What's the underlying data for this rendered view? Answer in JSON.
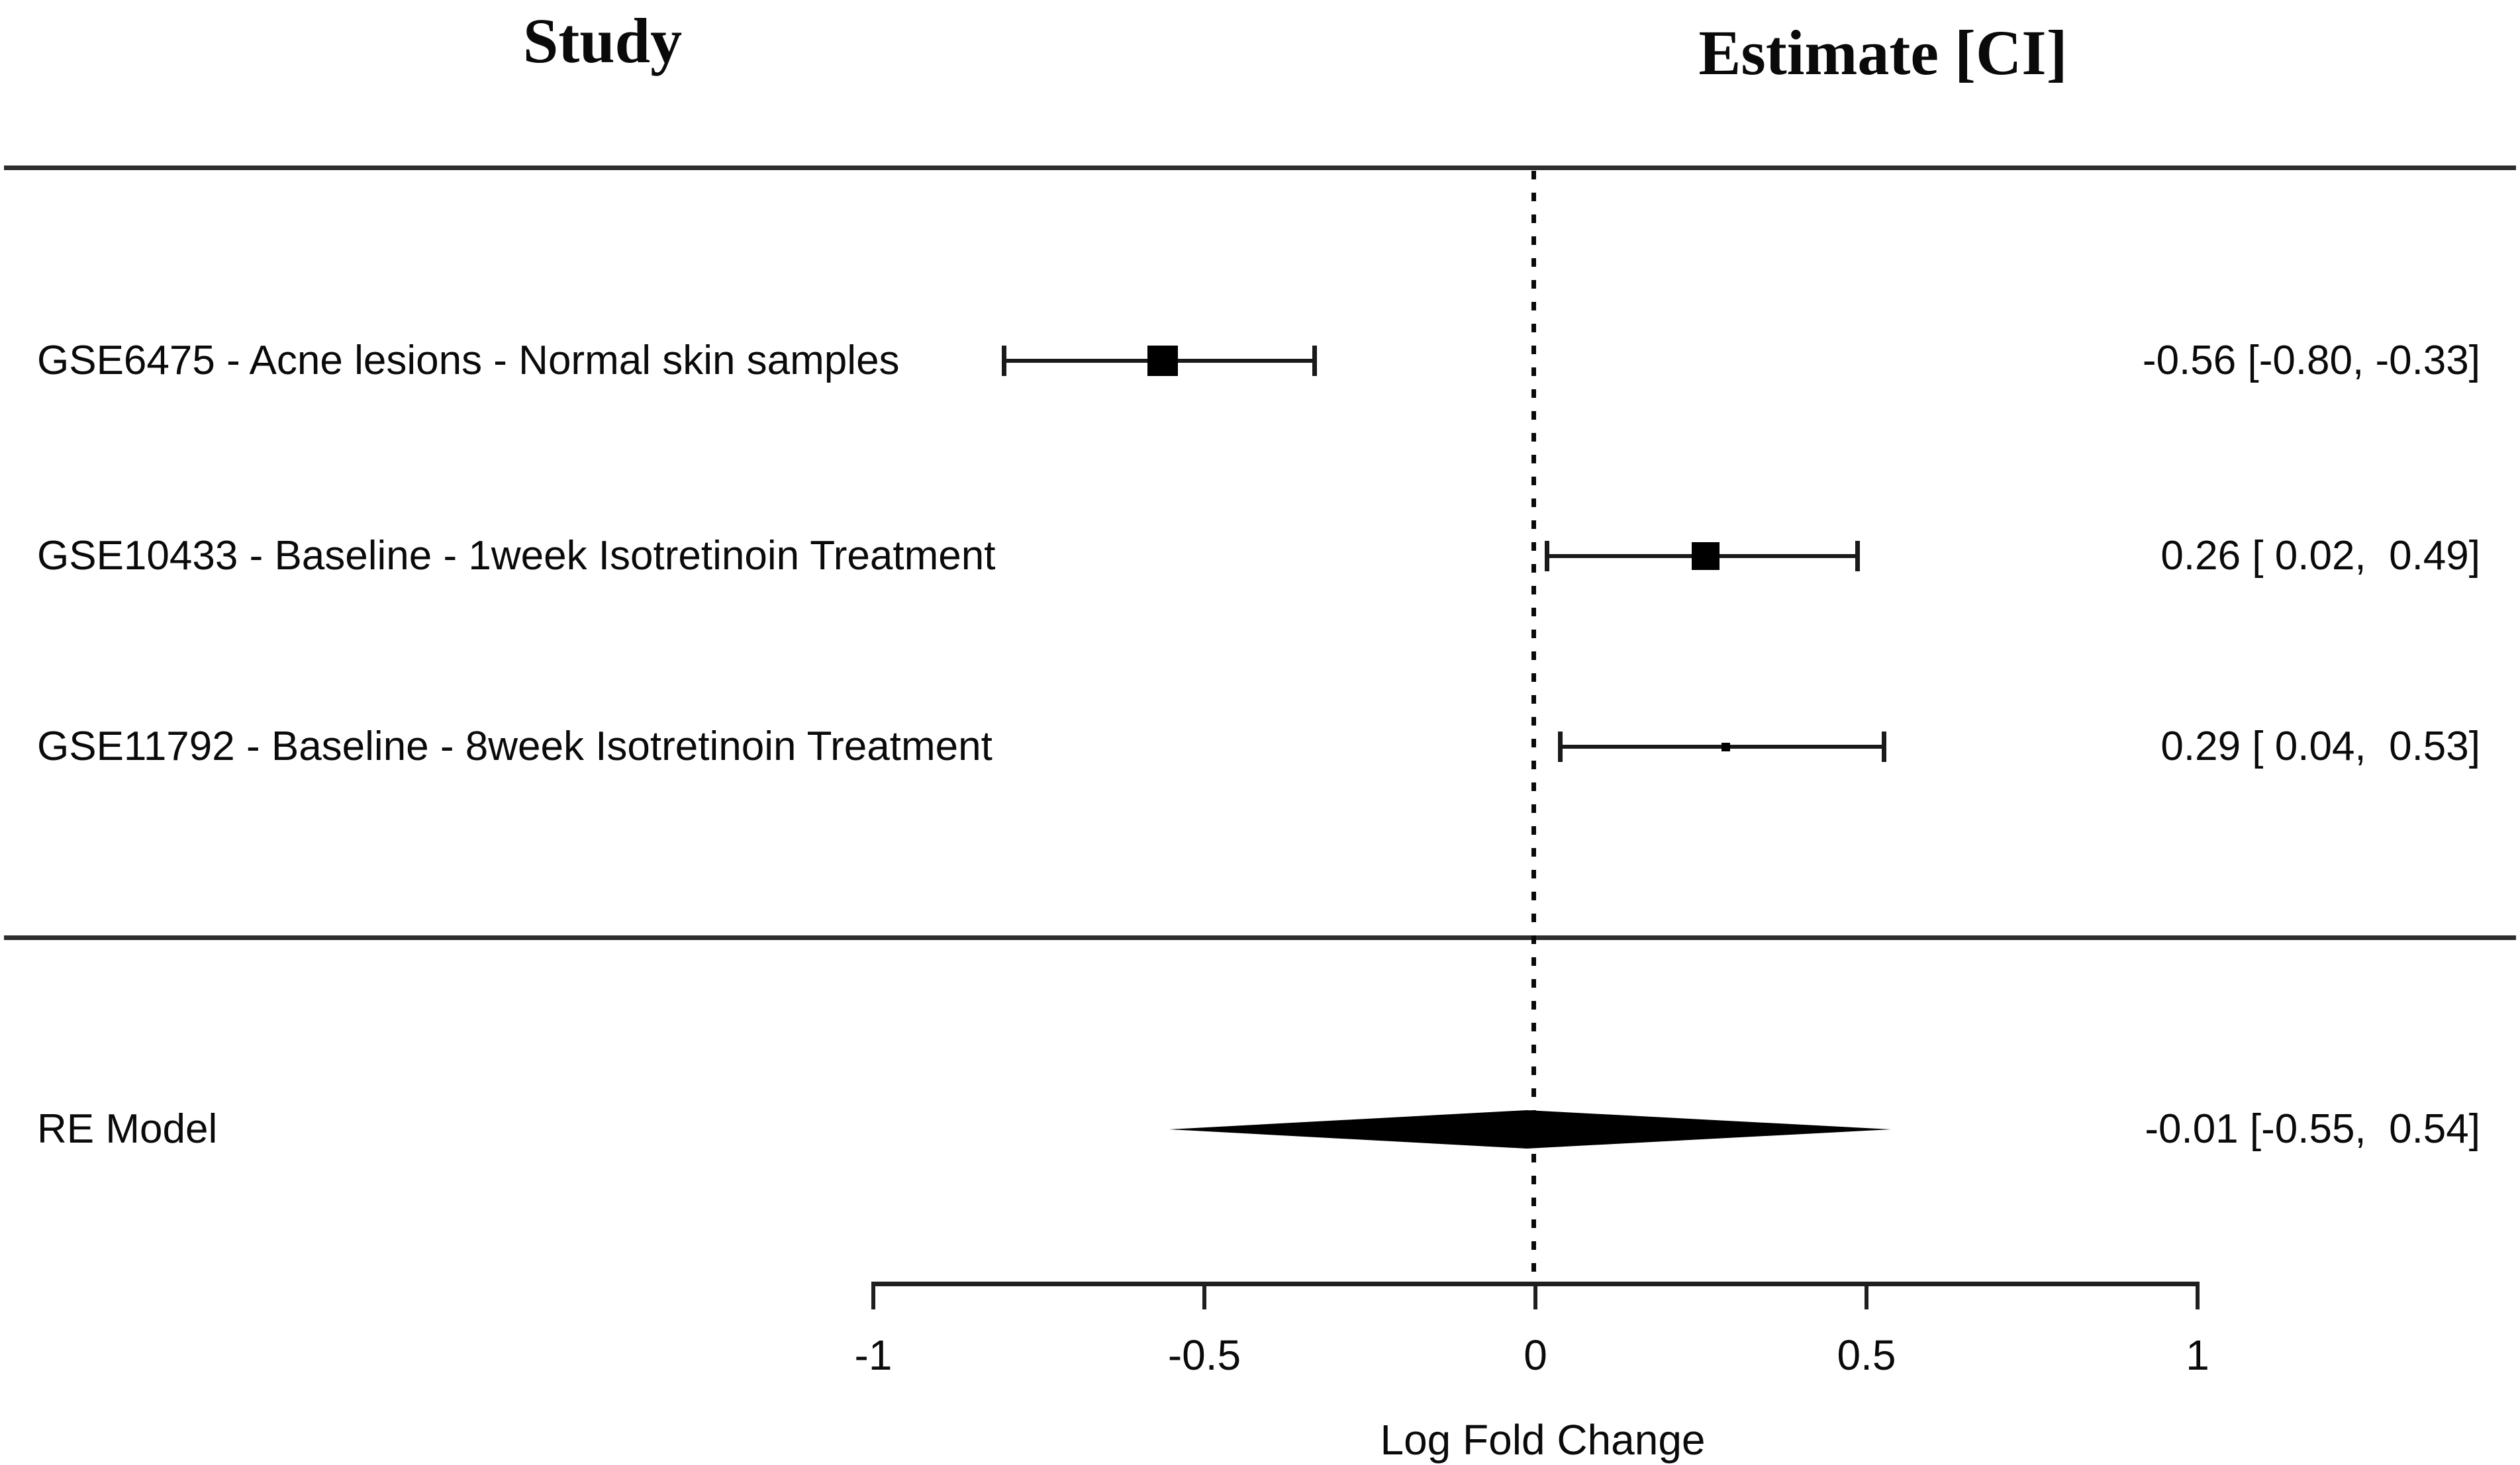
{
  "chart_data": {
    "type": "forest",
    "title_columns": {
      "left": "Study",
      "right": "Estimate [CI]"
    },
    "xlabel": "Log Fold Change",
    "xlim": [
      -1,
      1
    ],
    "x_ticks": [
      -1,
      -0.5,
      0,
      0.5,
      1
    ],
    "x_tick_labels": [
      "-1",
      "-0.5",
      "0",
      "0.5",
      "1"
    ],
    "reference_line_x": 0,
    "grid": false,
    "studies": [
      {
        "label": "GSE6475 - Acne lesions - Normal skin samples",
        "estimate": -0.56,
        "ci_low": -0.8,
        "ci_high": -0.33,
        "estimate_text": "-0.56 [-0.80, -0.33]",
        "marker_size_px": 46
      },
      {
        "label": "GSE10433 - Baseline - 1week Isotretinoin Treatment",
        "estimate": 0.26,
        "ci_low": 0.02,
        "ci_high": 0.49,
        "estimate_text": "0.26 [ 0.02,  0.49]",
        "marker_size_px": 42
      },
      {
        "label": "GSE11792 - Baseline - 8week Isotretinoin Treatment",
        "estimate": 0.29,
        "ci_low": 0.04,
        "ci_high": 0.53,
        "estimate_text": "0.29 [ 0.04,  0.53]",
        "marker_size_px": 13
      }
    ],
    "summary": {
      "label": "RE Model",
      "estimate": -0.01,
      "ci_low": -0.55,
      "ci_high": 0.54,
      "estimate_text": "-0.01 [-0.55,  0.54]"
    }
  }
}
